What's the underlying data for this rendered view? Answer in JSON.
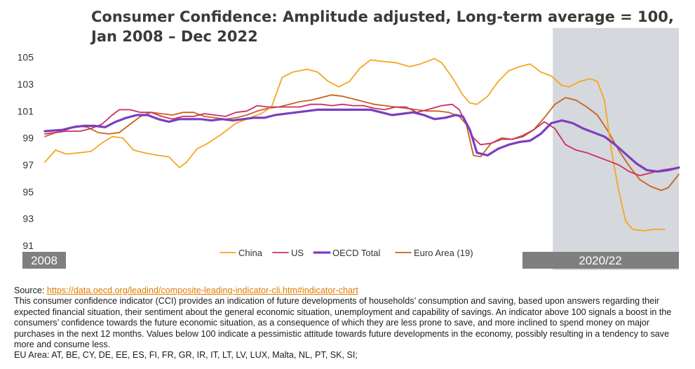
{
  "title_line1": "Consumer Confidence: Amplitude adjusted, Long-term average = 100,",
  "title_line2": "Jan 2008 – Dec 2022",
  "period_labels": {
    "left": "2008",
    "right": "2020/22"
  },
  "footer": {
    "source_label": "Source:",
    "source_link": "https://data.oecd.org/leadind/composite-leading-indicator-cli.htm#indicator-chart",
    "description": "This consumer confidence indicator (CCI) provides an indication of future developments of households’ consumption and saving, based upon answers regarding their expected financial situation, their sentiment about the general economic situation, unemployment and capability of savings. An indicator above 100 signals a boost in the consumers’ confidence towards the future economic situation, as a consequence of which they are less prone to save, and more inclined to spend money on major purchases in the next 12 months. Values below 100 indicate a pessimistic attitude towards future developments in the economy, possibly resulting in a tendency to save more and consume less.",
    "eu_area": "EU Area: AT, BE, CY, DE, EE, ES, FI, FR, GR, IR, IT, LT, LV, LUX, Malta, NL, PT, SK, SI;"
  },
  "colors": {
    "china": "#f5a623",
    "us": "#cc2f63",
    "oecd": "#7a3fc0",
    "euro": "#c8621e",
    "shade": "#d5d8dc",
    "label_box": "#7f7f7f"
  },
  "chart_data": {
    "type": "line",
    "x_start": "2008-01",
    "x_end": "2022-12",
    "ylim": [
      91,
      105.5
    ],
    "yticks": [
      "91",
      "93",
      "95",
      "97",
      "99",
      "101",
      "103",
      "105"
    ],
    "grid": false,
    "legend_position": "bottom-center",
    "shaded_range": [
      "2020-01",
      "2022-12"
    ],
    "series": [
      {
        "name": "China",
        "color_key": "china",
        "width": 1.8,
        "points": [
          [
            "2008-01",
            97.2
          ],
          [
            "2008-04",
            98.1
          ],
          [
            "2008-07",
            97.8
          ],
          [
            "2008-11",
            97.9
          ],
          [
            "2009-02",
            98.0
          ],
          [
            "2009-05",
            98.6
          ],
          [
            "2009-08",
            99.1
          ],
          [
            "2009-11",
            99.0
          ],
          [
            "2010-02",
            98.1
          ],
          [
            "2010-05",
            97.9
          ],
          [
            "2010-09",
            97.7
          ],
          [
            "2010-12",
            97.6
          ],
          [
            "2011-03",
            96.8
          ],
          [
            "2011-05",
            97.2
          ],
          [
            "2011-08",
            98.2
          ],
          [
            "2011-11",
            98.6
          ],
          [
            "2012-03",
            99.3
          ],
          [
            "2012-07",
            100.1
          ],
          [
            "2012-11",
            100.5
          ],
          [
            "2013-02",
            100.8
          ],
          [
            "2013-05",
            101.3
          ],
          [
            "2013-08",
            103.5
          ],
          [
            "2013-11",
            103.9
          ],
          [
            "2014-03",
            104.1
          ],
          [
            "2014-06",
            103.9
          ],
          [
            "2014-09",
            103.2
          ],
          [
            "2014-12",
            102.8
          ],
          [
            "2015-03",
            103.2
          ],
          [
            "2015-06",
            104.2
          ],
          [
            "2015-09",
            104.8
          ],
          [
            "2015-12",
            104.7
          ],
          [
            "2016-04",
            104.6
          ],
          [
            "2016-08",
            104.3
          ],
          [
            "2016-11",
            104.5
          ],
          [
            "2017-03",
            104.9
          ],
          [
            "2017-05",
            104.6
          ],
          [
            "2017-08",
            103.5
          ],
          [
            "2017-11",
            102.2
          ],
          [
            "2018-01",
            101.6
          ],
          [
            "2018-03",
            101.5
          ],
          [
            "2018-06",
            102.1
          ],
          [
            "2018-09",
            103.2
          ],
          [
            "2018-12",
            104.0
          ],
          [
            "2019-03",
            104.3
          ],
          [
            "2019-06",
            104.5
          ],
          [
            "2019-09",
            103.9
          ],
          [
            "2019-12",
            103.6
          ],
          [
            "2020-03",
            102.9
          ],
          [
            "2020-05",
            102.8
          ],
          [
            "2020-08",
            103.2
          ],
          [
            "2020-11",
            103.4
          ],
          [
            "2021-01",
            103.2
          ],
          [
            "2021-03",
            101.8
          ],
          [
            "2021-05",
            98.0
          ],
          [
            "2021-07",
            95.1
          ],
          [
            "2021-09",
            92.8
          ],
          [
            "2021-11",
            92.2
          ],
          [
            "2022-02",
            92.1
          ],
          [
            "2022-05",
            92.2
          ],
          [
            "2022-08",
            92.2
          ]
        ]
      },
      {
        "name": "US",
        "color_key": "us",
        "width": 1.8,
        "points": [
          [
            "2008-01",
            99.3
          ],
          [
            "2008-04",
            99.4
          ],
          [
            "2008-07",
            99.5
          ],
          [
            "2008-11",
            99.5
          ],
          [
            "2009-02",
            99.7
          ],
          [
            "2009-05",
            100.0
          ],
          [
            "2009-08",
            100.7
          ],
          [
            "2009-10",
            101.1
          ],
          [
            "2010-01",
            101.1
          ],
          [
            "2010-04",
            100.9
          ],
          [
            "2010-07",
            100.9
          ],
          [
            "2010-10",
            100.6
          ],
          [
            "2011-01",
            100.4
          ],
          [
            "2011-04",
            100.6
          ],
          [
            "2011-07",
            100.6
          ],
          [
            "2011-10",
            100.8
          ],
          [
            "2012-01",
            100.7
          ],
          [
            "2012-04",
            100.6
          ],
          [
            "2012-07",
            100.9
          ],
          [
            "2012-10",
            101.0
          ],
          [
            "2013-01",
            101.4
          ],
          [
            "2013-04",
            101.3
          ],
          [
            "2013-07",
            101.3
          ],
          [
            "2013-10",
            101.3
          ],
          [
            "2014-01",
            101.3
          ],
          [
            "2014-04",
            101.5
          ],
          [
            "2014-07",
            101.5
          ],
          [
            "2014-10",
            101.4
          ],
          [
            "2015-01",
            101.5
          ],
          [
            "2015-04",
            101.4
          ],
          [
            "2015-07",
            101.4
          ],
          [
            "2015-10",
            101.2
          ],
          [
            "2016-01",
            101.1
          ],
          [
            "2016-04",
            101.3
          ],
          [
            "2016-07",
            101.3
          ],
          [
            "2016-10",
            100.9
          ],
          [
            "2017-01",
            101.1
          ],
          [
            "2017-05",
            101.4
          ],
          [
            "2017-08",
            101.5
          ],
          [
            "2017-10",
            101.1
          ],
          [
            "2017-12",
            100.0
          ],
          [
            "2018-02",
            99.0
          ],
          [
            "2018-04",
            98.5
          ],
          [
            "2018-07",
            98.6
          ],
          [
            "2018-10",
            98.9
          ],
          [
            "2019-01",
            98.9
          ],
          [
            "2019-04",
            99.1
          ],
          [
            "2019-07",
            99.6
          ],
          [
            "2019-10",
            100.2
          ],
          [
            "2020-01",
            99.7
          ],
          [
            "2020-04",
            98.5
          ],
          [
            "2020-07",
            98.1
          ],
          [
            "2020-10",
            97.9
          ],
          [
            "2021-01",
            97.6
          ],
          [
            "2021-04",
            97.3
          ],
          [
            "2021-07",
            97.0
          ],
          [
            "2021-10",
            96.5
          ],
          [
            "2022-01",
            96.2
          ],
          [
            "2022-04",
            96.4
          ],
          [
            "2022-07",
            96.6
          ],
          [
            "2022-12",
            96.8
          ]
        ]
      },
      {
        "name": "OECD Total",
        "color_key": "oecd",
        "width": 3.2,
        "points": [
          [
            "2008-01",
            99.5
          ],
          [
            "2008-06",
            99.6
          ],
          [
            "2008-09",
            99.8
          ],
          [
            "2008-12",
            99.9
          ],
          [
            "2009-03",
            99.9
          ],
          [
            "2009-06",
            99.8
          ],
          [
            "2009-09",
            100.2
          ],
          [
            "2009-12",
            100.5
          ],
          [
            "2010-03",
            100.7
          ],
          [
            "2010-06",
            100.7
          ],
          [
            "2010-09",
            100.4
          ],
          [
            "2010-12",
            100.2
          ],
          [
            "2011-03",
            100.4
          ],
          [
            "2011-06",
            100.4
          ],
          [
            "2011-09",
            100.4
          ],
          [
            "2011-12",
            100.3
          ],
          [
            "2012-03",
            100.4
          ],
          [
            "2012-06",
            100.3
          ],
          [
            "2012-09",
            100.4
          ],
          [
            "2012-12",
            100.5
          ],
          [
            "2013-03",
            100.5
          ],
          [
            "2013-06",
            100.7
          ],
          [
            "2013-09",
            100.8
          ],
          [
            "2013-12",
            100.9
          ],
          [
            "2014-03",
            101.0
          ],
          [
            "2014-06",
            101.1
          ],
          [
            "2014-09",
            101.1
          ],
          [
            "2014-12",
            101.1
          ],
          [
            "2015-03",
            101.1
          ],
          [
            "2015-06",
            101.1
          ],
          [
            "2015-09",
            101.1
          ],
          [
            "2015-12",
            100.9
          ],
          [
            "2016-03",
            100.7
          ],
          [
            "2016-06",
            100.8
          ],
          [
            "2016-09",
            100.9
          ],
          [
            "2016-12",
            100.7
          ],
          [
            "2017-03",
            100.4
          ],
          [
            "2017-06",
            100.5
          ],
          [
            "2017-09",
            100.7
          ],
          [
            "2017-11",
            100.6
          ],
          [
            "2018-01",
            99.6
          ],
          [
            "2018-03",
            97.9
          ],
          [
            "2018-06",
            97.7
          ],
          [
            "2018-09",
            98.2
          ],
          [
            "2018-12",
            98.5
          ],
          [
            "2019-03",
            98.7
          ],
          [
            "2019-06",
            98.8
          ],
          [
            "2019-09",
            99.3
          ],
          [
            "2019-12",
            100.1
          ],
          [
            "2020-03",
            100.3
          ],
          [
            "2020-06",
            100.1
          ],
          [
            "2020-09",
            99.7
          ],
          [
            "2020-12",
            99.4
          ],
          [
            "2021-03",
            99.1
          ],
          [
            "2021-06",
            98.5
          ],
          [
            "2021-09",
            97.8
          ],
          [
            "2021-12",
            97.1
          ],
          [
            "2022-03",
            96.6
          ],
          [
            "2022-06",
            96.5
          ],
          [
            "2022-09",
            96.6
          ],
          [
            "2022-12",
            96.8
          ]
        ]
      },
      {
        "name": "Euro Area (19)",
        "color_key": "euro",
        "width": 1.8,
        "points": [
          [
            "2008-01",
            99.1
          ],
          [
            "2008-04",
            99.4
          ],
          [
            "2008-07",
            99.6
          ],
          [
            "2008-10",
            99.9
          ],
          [
            "2009-01",
            99.8
          ],
          [
            "2009-04",
            99.4
          ],
          [
            "2009-07",
            99.3
          ],
          [
            "2009-10",
            99.4
          ],
          [
            "2010-01",
            100.0
          ],
          [
            "2010-04",
            100.6
          ],
          [
            "2010-07",
            100.9
          ],
          [
            "2010-10",
            100.8
          ],
          [
            "2011-01",
            100.7
          ],
          [
            "2011-04",
            100.9
          ],
          [
            "2011-07",
            100.9
          ],
          [
            "2011-10",
            100.6
          ],
          [
            "2012-01",
            100.5
          ],
          [
            "2012-04",
            100.4
          ],
          [
            "2012-07",
            100.5
          ],
          [
            "2012-10",
            100.7
          ],
          [
            "2013-01",
            101.0
          ],
          [
            "2013-04",
            101.2
          ],
          [
            "2013-07",
            101.3
          ],
          [
            "2013-10",
            101.5
          ],
          [
            "2014-01",
            101.7
          ],
          [
            "2014-04",
            101.8
          ],
          [
            "2014-07",
            102.0
          ],
          [
            "2014-10",
            102.2
          ],
          [
            "2015-01",
            102.1
          ],
          [
            "2015-04",
            101.9
          ],
          [
            "2015-07",
            101.7
          ],
          [
            "2015-10",
            101.5
          ],
          [
            "2016-01",
            101.4
          ],
          [
            "2016-04",
            101.3
          ],
          [
            "2016-07",
            101.2
          ],
          [
            "2016-10",
            101.1
          ],
          [
            "2017-01",
            101.0
          ],
          [
            "2017-04",
            101.0
          ],
          [
            "2017-07",
            100.9
          ],
          [
            "2017-10",
            100.6
          ],
          [
            "2017-12",
            100.0
          ],
          [
            "2018-02",
            97.7
          ],
          [
            "2018-04",
            97.6
          ],
          [
            "2018-07",
            98.6
          ],
          [
            "2018-10",
            99.0
          ],
          [
            "2019-01",
            98.9
          ],
          [
            "2019-04",
            99.2
          ],
          [
            "2019-07",
            99.6
          ],
          [
            "2019-10",
            100.5
          ],
          [
            "2020-01",
            101.5
          ],
          [
            "2020-04",
            102.0
          ],
          [
            "2020-07",
            101.8
          ],
          [
            "2020-10",
            101.3
          ],
          [
            "2021-01",
            100.7
          ],
          [
            "2021-04",
            99.5
          ],
          [
            "2021-07",
            98.1
          ],
          [
            "2021-10",
            96.9
          ],
          [
            "2022-01",
            95.9
          ],
          [
            "2022-04",
            95.4
          ],
          [
            "2022-07",
            95.1
          ],
          [
            "2022-09",
            95.3
          ],
          [
            "2022-12",
            96.3
          ]
        ]
      }
    ]
  }
}
